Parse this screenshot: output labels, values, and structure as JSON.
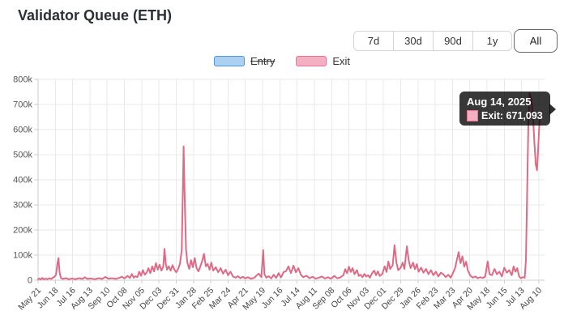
{
  "title": "Validator Queue (ETH)",
  "range_buttons": [
    {
      "label": "7d",
      "active": false
    },
    {
      "label": "30d",
      "active": false
    },
    {
      "label": "90d",
      "active": false
    },
    {
      "label": "1y",
      "active": false
    },
    {
      "label": "All",
      "active": true
    }
  ],
  "legend": {
    "entry": {
      "label": "Entry",
      "disabled": true
    },
    "exit": {
      "label": "Exit",
      "disabled": false
    }
  },
  "tooltip": {
    "title": "Aug 14, 2025",
    "body": "Exit: 671,093",
    "series": "Exit",
    "value": "671,093"
  },
  "colors": {
    "exit_line": "#e06a86",
    "exit_fill_light": "#f5afc3",
    "exit_border": "#e8728f",
    "entry_fill_light": "#abd0f0",
    "entry_border": "#4e95d9",
    "grid": "#e9e9e9",
    "axis": "#cccccc",
    "tick_text": "#555555",
    "x_text": "#444444"
  },
  "chart_data": {
    "type": "line",
    "x_tick_labels": [
      "May 21",
      "Jun 18",
      "Jul 16",
      "Aug 13",
      "Sep 10",
      "Oct 08",
      "Nov 05",
      "Dec 03",
      "Dec 31",
      "Jan 28",
      "Feb 25",
      "Mar 24",
      "Apr 21",
      "May 19",
      "Jun 16",
      "Jul 14",
      "Aug 11",
      "Sep 08",
      "Oct 06",
      "Nov 03",
      "Dec 01",
      "Dec 29",
      "Jan 26",
      "Feb 23",
      "Mar 23",
      "Apr 20",
      "May 18",
      "Jun 15",
      "Jul 13",
      "Aug 10"
    ],
    "x_tick_interval_days": 28,
    "x_range_days": [
      0,
      816
    ],
    "x_start_date": "May 21, 2023",
    "x_end_date": "Aug 14, 2025",
    "y_tick_labels": [
      "0",
      "100k",
      "200k",
      "300k",
      "400k",
      "500k",
      "600k",
      "700k",
      "800k"
    ],
    "ylim": [
      0,
      800000
    ],
    "grid": true,
    "legend_position": "top",
    "series": [
      {
        "name": "Entry",
        "hidden": true,
        "points": []
      },
      {
        "name": "Exit",
        "hidden": false,
        "points": [
          [
            0,
            4000
          ],
          [
            2,
            7000
          ],
          [
            4,
            3000
          ],
          [
            7,
            9000
          ],
          [
            9,
            4000
          ],
          [
            12,
            6000
          ],
          [
            15,
            4000
          ],
          [
            18,
            8000
          ],
          [
            21,
            5000
          ],
          [
            24,
            10000
          ],
          [
            27,
            15000
          ],
          [
            29,
            22000
          ],
          [
            31,
            60000
          ],
          [
            33,
            88000
          ],
          [
            35,
            30000
          ],
          [
            37,
            9000
          ],
          [
            40,
            5000
          ],
          [
            45,
            8000
          ],
          [
            50,
            4000
          ],
          [
            55,
            7000
          ],
          [
            60,
            4000
          ],
          [
            66,
            8000
          ],
          [
            72,
            5000
          ],
          [
            76,
            12000
          ],
          [
            80,
            5000
          ],
          [
            86,
            7000
          ],
          [
            92,
            4000
          ],
          [
            98,
            8000
          ],
          [
            104,
            5000
          ],
          [
            109,
            13000
          ],
          [
            114,
            6000
          ],
          [
            120,
            8000
          ],
          [
            126,
            5000
          ],
          [
            131,
            9000
          ],
          [
            136,
            14000
          ],
          [
            140,
            7000
          ],
          [
            145,
            17000
          ],
          [
            149,
            9000
          ],
          [
            152,
            25000
          ],
          [
            155,
            10000
          ],
          [
            158,
            16000
          ],
          [
            161,
            12000
          ],
          [
            164,
            34000
          ],
          [
            167,
            18000
          ],
          [
            170,
            40000
          ],
          [
            173,
            22000
          ],
          [
            176,
            30000
          ],
          [
            179,
            48000
          ],
          [
            182,
            28000
          ],
          [
            185,
            55000
          ],
          [
            188,
            35000
          ],
          [
            191,
            68000
          ],
          [
            194,
            42000
          ],
          [
            197,
            62000
          ],
          [
            200,
            38000
          ],
          [
            203,
            55000
          ],
          [
            205,
            125000
          ],
          [
            207,
            68000
          ],
          [
            209,
            42000
          ],
          [
            212,
            55000
          ],
          [
            215,
            38000
          ],
          [
            218,
            60000
          ],
          [
            221,
            42000
          ],
          [
            224,
            32000
          ],
          [
            227,
            45000
          ],
          [
            230,
            65000
          ],
          [
            233,
            120000
          ],
          [
            236,
            533000
          ],
          [
            238,
            300000
          ],
          [
            240,
            120000
          ],
          [
            242,
            70000
          ],
          [
            245,
            45000
          ],
          [
            248,
            80000
          ],
          [
            251,
            52000
          ],
          [
            254,
            88000
          ],
          [
            257,
            48000
          ],
          [
            260,
            35000
          ],
          [
            263,
            55000
          ],
          [
            266,
            75000
          ],
          [
            269,
            105000
          ],
          [
            272,
            55000
          ],
          [
            275,
            65000
          ],
          [
            278,
            42000
          ],
          [
            281,
            70000
          ],
          [
            284,
            38000
          ],
          [
            288,
            52000
          ],
          [
            292,
            32000
          ],
          [
            296,
            48000
          ],
          [
            300,
            26000
          ],
          [
            304,
            42000
          ],
          [
            308,
            20000
          ],
          [
            312,
            34000
          ],
          [
            316,
            15000
          ],
          [
            320,
            10000
          ],
          [
            324,
            16000
          ],
          [
            328,
            8000
          ],
          [
            332,
            14000
          ],
          [
            336,
            7000
          ],
          [
            340,
            12000
          ],
          [
            345,
            6000
          ],
          [
            350,
            9000
          ],
          [
            354,
            18000
          ],
          [
            358,
            26000
          ],
          [
            362,
            12000
          ],
          [
            365,
            120000
          ],
          [
            367,
            25000
          ],
          [
            370,
            10000
          ],
          [
            374,
            16000
          ],
          [
            378,
            7000
          ],
          [
            382,
            22000
          ],
          [
            386,
            9000
          ],
          [
            390,
            28000
          ],
          [
            394,
            11000
          ],
          [
            398,
            32000
          ],
          [
            402,
            36000
          ],
          [
            406,
            55000
          ],
          [
            410,
            28000
          ],
          [
            414,
            58000
          ],
          [
            418,
            32000
          ],
          [
            422,
            48000
          ],
          [
            426,
            22000
          ],
          [
            430,
            12000
          ],
          [
            435,
            18000
          ],
          [
            440,
            8000
          ],
          [
            445,
            14000
          ],
          [
            450,
            6000
          ],
          [
            455,
            10000
          ],
          [
            460,
            15000
          ],
          [
            465,
            7000
          ],
          [
            470,
            12000
          ],
          [
            475,
            6000
          ],
          [
            480,
            17000
          ],
          [
            485,
            8000
          ],
          [
            490,
            11000
          ],
          [
            495,
            20000
          ],
          [
            498,
            44000
          ],
          [
            501,
            28000
          ],
          [
            504,
            54000
          ],
          [
            507,
            33000
          ],
          [
            510,
            48000
          ],
          [
            513,
            24000
          ],
          [
            517,
            40000
          ],
          [
            520,
            17000
          ],
          [
            523,
            22000
          ],
          [
            526,
            12000
          ],
          [
            529,
            25000
          ],
          [
            532,
            15000
          ],
          [
            535,
            20000
          ],
          [
            538,
            10000
          ],
          [
            542,
            30000
          ],
          [
            545,
            38000
          ],
          [
            548,
            20000
          ],
          [
            551,
            35000
          ],
          [
            554,
            17000
          ],
          [
            558,
            25000
          ],
          [
            562,
            55000
          ],
          [
            565,
            33000
          ],
          [
            568,
            75000
          ],
          [
            571,
            45000
          ],
          [
            575,
            60000
          ],
          [
            578,
            140000
          ],
          [
            581,
            70000
          ],
          [
            584,
            40000
          ],
          [
            588,
            50000
          ],
          [
            591,
            70000
          ],
          [
            594,
            45000
          ],
          [
            598,
            135000
          ],
          [
            601,
            78000
          ],
          [
            604,
            48000
          ],
          [
            608,
            70000
          ],
          [
            611,
            44000
          ],
          [
            614,
            64000
          ],
          [
            617,
            34000
          ],
          [
            621,
            50000
          ],
          [
            625,
            30000
          ],
          [
            629,
            45000
          ],
          [
            633,
            24000
          ],
          [
            637,
            40000
          ],
          [
            641,
            20000
          ],
          [
            645,
            34000
          ],
          [
            649,
            15000
          ],
          [
            653,
            30000
          ],
          [
            657,
            24000
          ],
          [
            661,
            12000
          ],
          [
            665,
            22000
          ],
          [
            669,
            10000
          ],
          [
            673,
            30000
          ],
          [
            676,
            48000
          ],
          [
            679,
            80000
          ],
          [
            682,
            112000
          ],
          [
            685,
            68000
          ],
          [
            688,
            95000
          ],
          [
            691,
            54000
          ],
          [
            694,
            74000
          ],
          [
            697,
            38000
          ],
          [
            701,
            18000
          ],
          [
            705,
            10000
          ],
          [
            709,
            15000
          ],
          [
            713,
            8000
          ],
          [
            717,
            12000
          ],
          [
            721,
            9000
          ],
          [
            725,
            14000
          ],
          [
            729,
            75000
          ],
          [
            732,
            24000
          ],
          [
            736,
            20000
          ],
          [
            740,
            45000
          ],
          [
            744,
            24000
          ],
          [
            748,
            34000
          ],
          [
            752,
            15000
          ],
          [
            756,
            50000
          ],
          [
            760,
            30000
          ],
          [
            764,
            40000
          ],
          [
            768,
            20000
          ],
          [
            771,
            55000
          ],
          [
            774,
            34000
          ],
          [
            777,
            48000
          ],
          [
            780,
            15000
          ],
          [
            783,
            8000
          ],
          [
            786,
            12000
          ],
          [
            789,
            10000
          ],
          [
            791,
            80000
          ],
          [
            793,
            350000
          ],
          [
            795,
            620000
          ],
          [
            797,
            745000
          ],
          [
            799,
            730000
          ],
          [
            801,
            695000
          ],
          [
            803,
            630000
          ],
          [
            805,
            540000
          ],
          [
            807,
            460000
          ],
          [
            809,
            438000
          ],
          [
            811,
            530000
          ],
          [
            813,
            630000
          ],
          [
            815,
            662000
          ],
          [
            816,
            671093
          ]
        ]
      }
    ],
    "highlighted_point": {
      "date": "Aug 14, 2025",
      "series": "Exit",
      "value": 671093
    }
  }
}
